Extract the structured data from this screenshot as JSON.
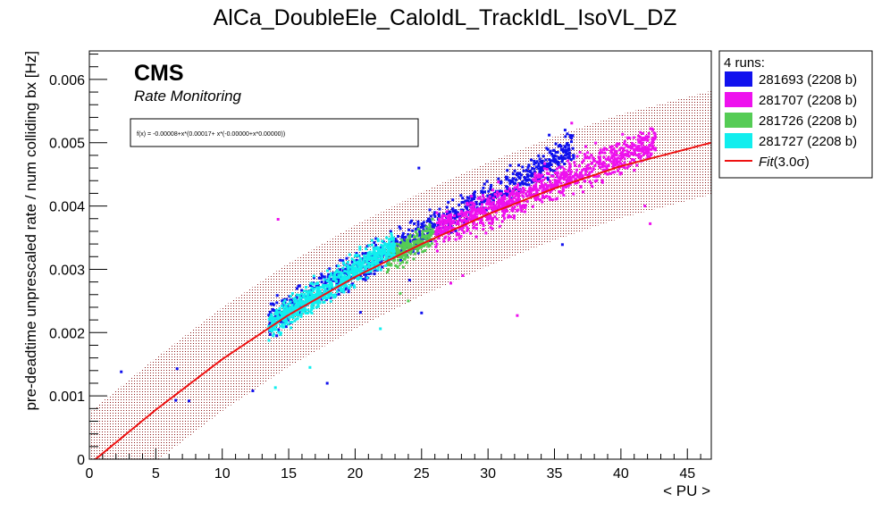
{
  "chart_data": {
    "type": "scatter",
    "title": "AlCa_DoubleEle_CaloIdL_TrackIdL_IsoVL_DZ",
    "xlabel": "< PU >",
    "ylabel": "pre-deadtime unprescaled rate / num colliding bx [Hz]",
    "xlim": [
      0,
      46.8
    ],
    "ylim": [
      0,
      0.00645
    ],
    "x_ticks": [
      0,
      5,
      10,
      15,
      20,
      25,
      30,
      35,
      40,
      45
    ],
    "x_tick_labels": [
      "0",
      "5",
      "10",
      "15",
      "20",
      "25",
      "30",
      "35",
      "40",
      "45"
    ],
    "y_ticks": [
      0,
      0.001,
      0.002,
      0.003,
      0.004,
      0.005,
      0.006
    ],
    "y_tick_labels": [
      "0",
      "0.001",
      "0.002",
      "0.003",
      "0.004",
      "0.005",
      "0.006"
    ],
    "grid": false,
    "legend_position": "outside-right-top",
    "legend_header": "4 runs:",
    "brand": "CMS",
    "brand_subtitle": "Rate Monitoring",
    "formula": "f(x) = -0.00008+x*(0.00017+ x*(-0.00000+x*0.00000))",
    "fit": {
      "label_prefix": "Fit",
      "label_suffix": "(3.0σ)",
      "color": "#ee1111",
      "band_color": "#8b1a1a",
      "band_halfwidth": 0.00082,
      "x": [
        0,
        5,
        10,
        15,
        20,
        25,
        30,
        35,
        40,
        46.8
      ],
      "y": [
        -8e-05,
        0.00078,
        0.00158,
        0.00228,
        0.00288,
        0.0034,
        0.00387,
        0.00428,
        0.00463,
        0.005
      ]
    },
    "series": [
      {
        "name": "281693 (2208 b)",
        "color": "#1111ee",
        "clusters": [
          {
            "xmin": 13.5,
            "xmax": 36.5,
            "slope": 0.000118,
            "intercept": 0.00062,
            "noise": 0.00024,
            "count": 900
          }
        ],
        "outliers": [
          [
            2.4,
            0.00138
          ],
          [
            6.6,
            0.00143
          ],
          [
            6.5,
            0.00093
          ],
          [
            7.5,
            0.00092
          ],
          [
            12.3,
            0.00108
          ],
          [
            17.9,
            0.0012
          ],
          [
            24.8,
            0.0046
          ],
          [
            25.0,
            0.00231
          ],
          [
            24.1,
            0.00283
          ],
          [
            35.6,
            0.00339
          ],
          [
            35.8,
            0.0052
          ],
          [
            34.6,
            0.00512
          ],
          [
            20.4,
            0.00232
          ],
          [
            14.1,
            0.00195
          ]
        ]
      },
      {
        "name": "281707 (2208 b)",
        "color": "#ee11ee",
        "clusters": [
          {
            "xmin": 26.0,
            "xmax": 42.6,
            "slope": 8.7e-05,
            "intercept": 0.00132,
            "noise": 0.00026,
            "count": 950
          }
        ],
        "outliers": [
          [
            14.2,
            0.00379
          ],
          [
            32.2,
            0.00227
          ],
          [
            42.2,
            0.00372
          ],
          [
            41.8,
            0.004
          ],
          [
            36.3,
            0.00531
          ],
          [
            27.2,
            0.00278
          ],
          [
            28.1,
            0.0029
          ]
        ]
      },
      {
        "name": "281726 (2208 b)",
        "color": "#55cc55",
        "clusters": [
          {
            "xmin": 22.4,
            "xmax": 25.9,
            "slope": 0.00012,
            "intercept": 0.00046,
            "noise": 0.0002,
            "count": 220
          }
        ],
        "outliers": [
          [
            24.0,
            0.0025
          ],
          [
            23.4,
            0.00262
          ]
        ]
      },
      {
        "name": "281727 (2208 b)",
        "color": "#11eeee",
        "clusters": [
          {
            "xmin": 13.5,
            "xmax": 23.0,
            "slope": 0.000136,
            "intercept": 0.000265,
            "noise": 0.00022,
            "count": 750
          }
        ],
        "outliers": [
          [
            14.0,
            0.00113
          ],
          [
            21.9,
            0.00206
          ],
          [
            16.6,
            0.00145
          ]
        ]
      }
    ]
  }
}
